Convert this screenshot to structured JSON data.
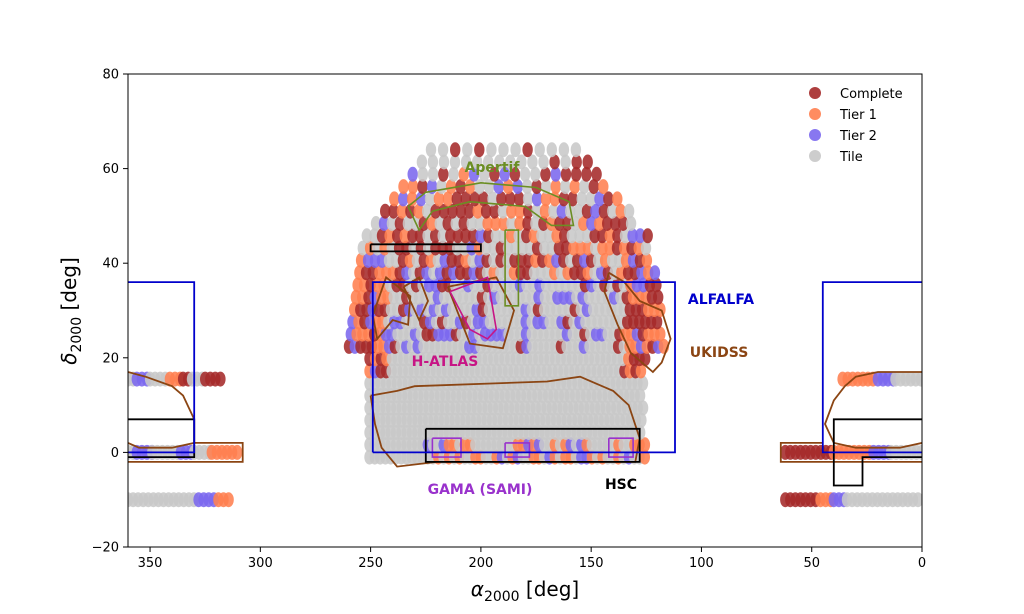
{
  "chart_data": {
    "type": "scatter",
    "title": "",
    "xlabel": "α2000 [deg]",
    "ylabel": "δ2000 [deg]",
    "xlim": [
      360,
      0
    ],
    "ylim": [
      -20,
      80
    ],
    "x_reversed": true,
    "xticks": [
      350,
      300,
      250,
      200,
      150,
      100,
      50,
      0
    ],
    "yticks": [
      -20,
      0,
      20,
      40,
      60,
      80
    ],
    "grid": false,
    "legend_position": "top-right",
    "series": [
      {
        "name": "Complete",
        "color": "#a52a2a"
      },
      {
        "name": "Tier 1",
        "color": "#ff7f50"
      },
      {
        "name": "Tier 2",
        "color": "#7b68ee"
      },
      {
        "name": "Tile",
        "color": "#c8c8c8"
      }
    ],
    "bands": [
      {
        "dec": -10,
        "ra_ranges": [
          [
            360,
            313
          ]
        ],
        "tiers": [
          [
            "Tile",
            360,
            328
          ],
          [
            "Tier 2",
            328,
            319
          ],
          [
            "Tier 1",
            319,
            313
          ]
        ]
      },
      {
        "dec": 15.5,
        "ra_ranges": [
          [
            360,
            319
          ]
        ],
        "tiers": [
          [
            "Tile",
            360,
            356
          ],
          [
            "Tier 2",
            356,
            350
          ],
          [
            "Tile",
            350,
            341
          ],
          [
            "Tier 1",
            341,
            335
          ],
          [
            "Complete",
            335,
            331
          ],
          [
            "Tile",
            331,
            325
          ],
          [
            "Complete",
            325,
            317
          ]
        ]
      },
      {
        "dec": 0,
        "ra_ranges": [
          [
            360,
            310
          ]
        ],
        "tiers": [
          [
            "Tile",
            360,
            356
          ],
          [
            "Tier 2",
            356,
            349
          ],
          [
            "Tile",
            349,
            336
          ],
          [
            "Tier 2",
            336,
            330
          ],
          [
            "Tile",
            330,
            322
          ],
          [
            "Tier 1",
            322,
            310
          ]
        ]
      },
      {
        "dec": 0,
        "ra_ranges": [
          [
            62,
            0
          ]
        ],
        "tiers": [
          [
            "Complete",
            62,
            40
          ],
          [
            "Tier 1",
            40,
            22
          ],
          [
            "Tier 2",
            22,
            14
          ],
          [
            "Tile",
            14,
            0
          ]
        ]
      },
      {
        "dec": 15.5,
        "ra_ranges": [
          [
            36,
            0
          ]
        ],
        "tiers": [
          [
            "Tier 1",
            36,
            20
          ],
          [
            "Tier 2",
            20,
            12
          ],
          [
            "Tile",
            12,
            0
          ]
        ]
      },
      {
        "dec": -10,
        "ra_ranges": [
          [
            62,
            0
          ]
        ],
        "tiers": [
          [
            "Complete",
            62,
            46
          ],
          [
            "Tier 1",
            46,
            40
          ],
          [
            "Tier 2",
            40,
            34
          ],
          [
            "Tile",
            34,
            0
          ]
        ]
      }
    ],
    "regions": [
      {
        "label": "ALFALFA",
        "color": "#0000cc"
      },
      {
        "label": "UKIDSS",
        "color": "#8b4513"
      },
      {
        "label": "Apertif",
        "color": "#6b8e23"
      },
      {
        "label": "H-ATLAS",
        "color": "#c71585"
      },
      {
        "label": "GAMA (SAMI)",
        "color": "#9932cc"
      },
      {
        "label": "HSC",
        "color": "#000000"
      }
    ],
    "region_shapes": {
      "alfalfa": [
        [
          [
            249,
            0
          ],
          [
            112,
            0
          ],
          [
            112,
            36
          ],
          [
            249,
            36
          ],
          [
            249,
            0
          ]
        ],
        [
          [
            360,
            36
          ],
          [
            330,
            36
          ],
          [
            330,
            0
          ],
          [
            360,
            0
          ]
        ],
        [
          [
            0,
            36
          ],
          [
            45,
            36
          ],
          [
            45,
            0
          ],
          [
            0,
            0
          ]
        ]
      ],
      "hsc": [
        [
          [
            225,
            5
          ],
          [
            128,
            5
          ],
          [
            128,
            -2
          ],
          [
            225,
            -2
          ],
          [
            225,
            5
          ]
        ],
        [
          [
            250,
            44
          ],
          [
            200,
            44
          ],
          [
            200,
            42.5
          ],
          [
            250,
            42.5
          ],
          [
            250,
            44
          ]
        ],
        [
          [
            360,
            7
          ],
          [
            330,
            7
          ],
          [
            330,
            -1
          ],
          [
            360,
            -1
          ]
        ],
        [
          [
            0,
            7
          ],
          [
            40,
            7
          ],
          [
            40,
            -7
          ],
          [
            27,
            -7
          ],
          [
            27,
            -1
          ],
          [
            0,
            -1
          ]
        ]
      ],
      "apertif": [
        [
          [
            233,
            52
          ],
          [
            225,
            55
          ],
          [
            200,
            57
          ],
          [
            175,
            56
          ],
          [
            160,
            53
          ],
          [
            158,
            48
          ],
          [
            168,
            48
          ],
          [
            180,
            52
          ],
          [
            205,
            53
          ],
          [
            222,
            51
          ],
          [
            228,
            47
          ],
          [
            233,
            52
          ]
        ],
        [
          [
            189,
            47
          ],
          [
            183,
            47
          ],
          [
            183,
            31
          ],
          [
            189,
            31
          ],
          [
            189,
            47
          ]
        ]
      ],
      "gama": [
        [
          [
            222,
            3
          ],
          [
            209,
            3
          ],
          [
            209,
            -1
          ],
          [
            222,
            -1
          ],
          [
            222,
            3
          ]
        ],
        [
          [
            189,
            2
          ],
          [
            178,
            2
          ],
          [
            178,
            -1
          ],
          [
            189,
            -1
          ],
          [
            189,
            2
          ]
        ],
        [
          [
            142,
            3
          ],
          [
            131,
            3
          ],
          [
            131,
            -1
          ],
          [
            142,
            -1
          ],
          [
            142,
            3
          ]
        ]
      ],
      "hatlas": [
        [
          [
            214,
            34
          ],
          [
            197,
            37
          ],
          [
            193,
            26
          ],
          [
            197,
            24
          ],
          [
            205,
            26
          ],
          [
            214,
            34
          ]
        ]
      ],
      "ukidss": [
        [
          [
            250,
            12
          ],
          [
            238,
            13
          ],
          [
            230,
            14
          ],
          [
            170,
            15
          ],
          [
            155,
            16
          ],
          [
            145,
            14
          ],
          [
            140,
            13
          ],
          [
            133,
            10
          ],
          [
            128,
            3
          ],
          [
            130,
            -2
          ],
          [
            165,
            -2
          ],
          [
            195,
            -2
          ],
          [
            220,
            -2
          ],
          [
            238,
            -3
          ],
          [
            245,
            1
          ],
          [
            248,
            6
          ],
          [
            250,
            12
          ]
        ],
        [
          [
            249,
            29
          ],
          [
            243,
            37
          ],
          [
            232,
            33
          ],
          [
            233,
            27
          ],
          [
            240,
            28
          ],
          [
            247,
            24
          ],
          [
            249,
            29
          ]
        ],
        [
          [
            235,
            35
          ],
          [
            228,
            37
          ],
          [
            224,
            32
          ],
          [
            228,
            28
          ],
          [
            235,
            35
          ]
        ],
        [
          [
            215,
            35
          ],
          [
            193,
            37
          ],
          [
            185,
            30
          ],
          [
            190,
            22
          ],
          [
            205,
            23
          ],
          [
            215,
            35
          ]
        ],
        [
          [
            142,
            38
          ],
          [
            135,
            36
          ],
          [
            128,
            32
          ],
          [
            118,
            30
          ],
          [
            114,
            24
          ],
          [
            118,
            19
          ],
          [
            122,
            17
          ],
          [
            132,
            21
          ],
          [
            138,
            27
          ],
          [
            144,
            34
          ],
          [
            142,
            38
          ]
        ],
        [
          [
            360,
            17
          ],
          [
            352,
            16
          ],
          [
            340,
            14
          ],
          [
            335,
            12
          ],
          [
            330,
            7
          ],
          [
            330,
            2
          ],
          [
            340,
            1
          ],
          [
            355,
            1
          ],
          [
            360,
            2
          ]
        ],
        [
          [
            360,
            -2
          ],
          [
            340,
            -2
          ],
          [
            330,
            -2
          ],
          [
            317,
            -2
          ],
          [
            308,
            -2
          ],
          [
            308,
            2
          ],
          [
            316,
            2
          ],
          [
            330,
            2
          ]
        ],
        [
          [
            0,
            17
          ],
          [
            20,
            17
          ],
          [
            30,
            16
          ],
          [
            35,
            14
          ],
          [
            40,
            11
          ],
          [
            44,
            6
          ],
          [
            40,
            2
          ],
          [
            30,
            1
          ],
          [
            10,
            1
          ],
          [
            0,
            2
          ]
        ],
        [
          [
            0,
            -2
          ],
          [
            30,
            -2
          ],
          [
            50,
            -2
          ],
          [
            64,
            -2
          ],
          [
            64,
            2
          ],
          [
            45,
            2
          ]
        ]
      ]
    }
  },
  "axes": {
    "x_tick_labels": [
      "350",
      "300",
      "250",
      "200",
      "150",
      "100",
      "50",
      "0"
    ],
    "y_tick_labels": [
      "−20",
      "0",
      "20",
      "40",
      "60",
      "80"
    ]
  }
}
